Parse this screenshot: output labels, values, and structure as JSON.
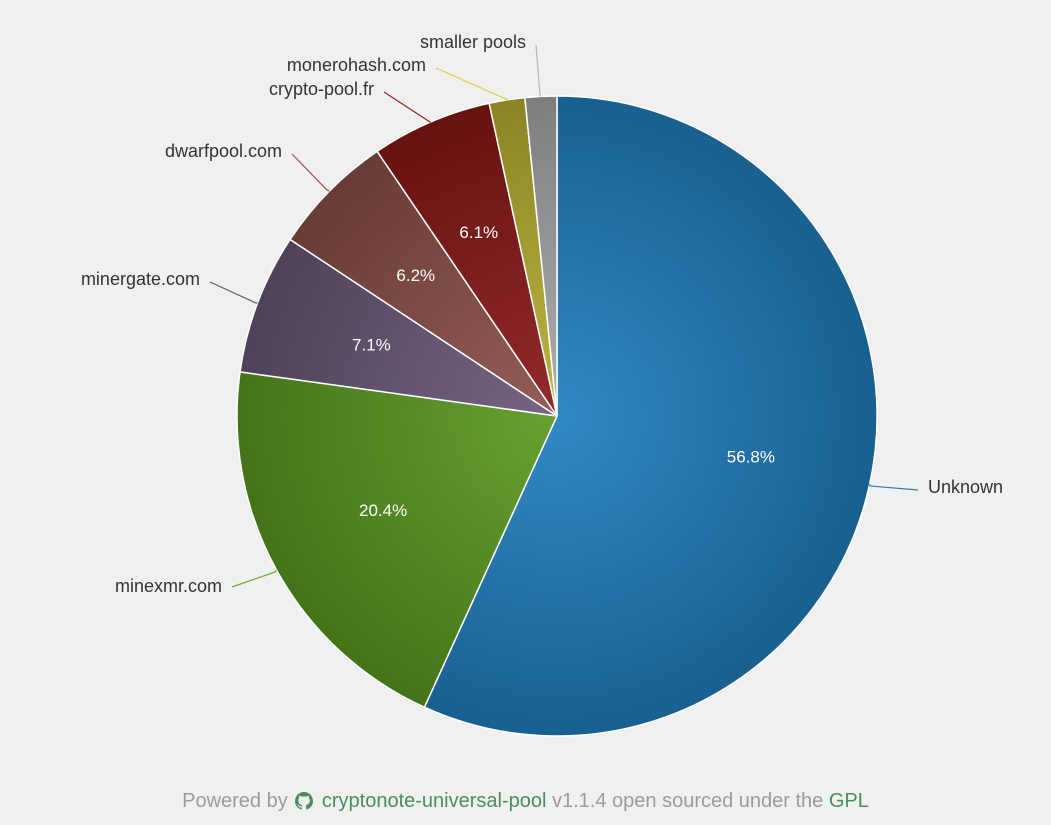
{
  "chart_data": {
    "type": "pie",
    "title": "",
    "slices": [
      {
        "label": "Unknown",
        "value": 56.8,
        "value_label": "56.8%",
        "color": "#2080c0"
      },
      {
        "label": "minexmr.com",
        "value": 20.4,
        "value_label": "20.4%",
        "color": "#5a9a20"
      },
      {
        "label": "minergate.com",
        "value": 7.1,
        "value_label": "7.1%",
        "color": "#6a5878"
      },
      {
        "label": "dwarfpool.com",
        "value": 6.2,
        "value_label": "6.2%",
        "color": "#8c5048"
      },
      {
        "label": "crypto-pool.fr",
        "value": 6.1,
        "value_label": "6.1%",
        "color": "#8a1818"
      },
      {
        "label": "monerohash.com",
        "value": 1.8,
        "value_label": "",
        "color": "#b8b030"
      },
      {
        "label": "smaller pools",
        "value": 1.6,
        "value_label": "",
        "color": "#a8a8a8"
      }
    ],
    "connector_colors": [
      "#2a7ab8",
      "#6aaa30",
      "#6a5878",
      "#905048",
      "#a02020",
      "#d8d040",
      "#b8b8b8"
    ]
  },
  "footer": {
    "powered_by": "Powered by",
    "project_link": "cryptonote-universal-pool",
    "version_text": "v1.1.4 open sourced under the",
    "license_link": "GPL",
    "github_icon": "github-icon"
  }
}
